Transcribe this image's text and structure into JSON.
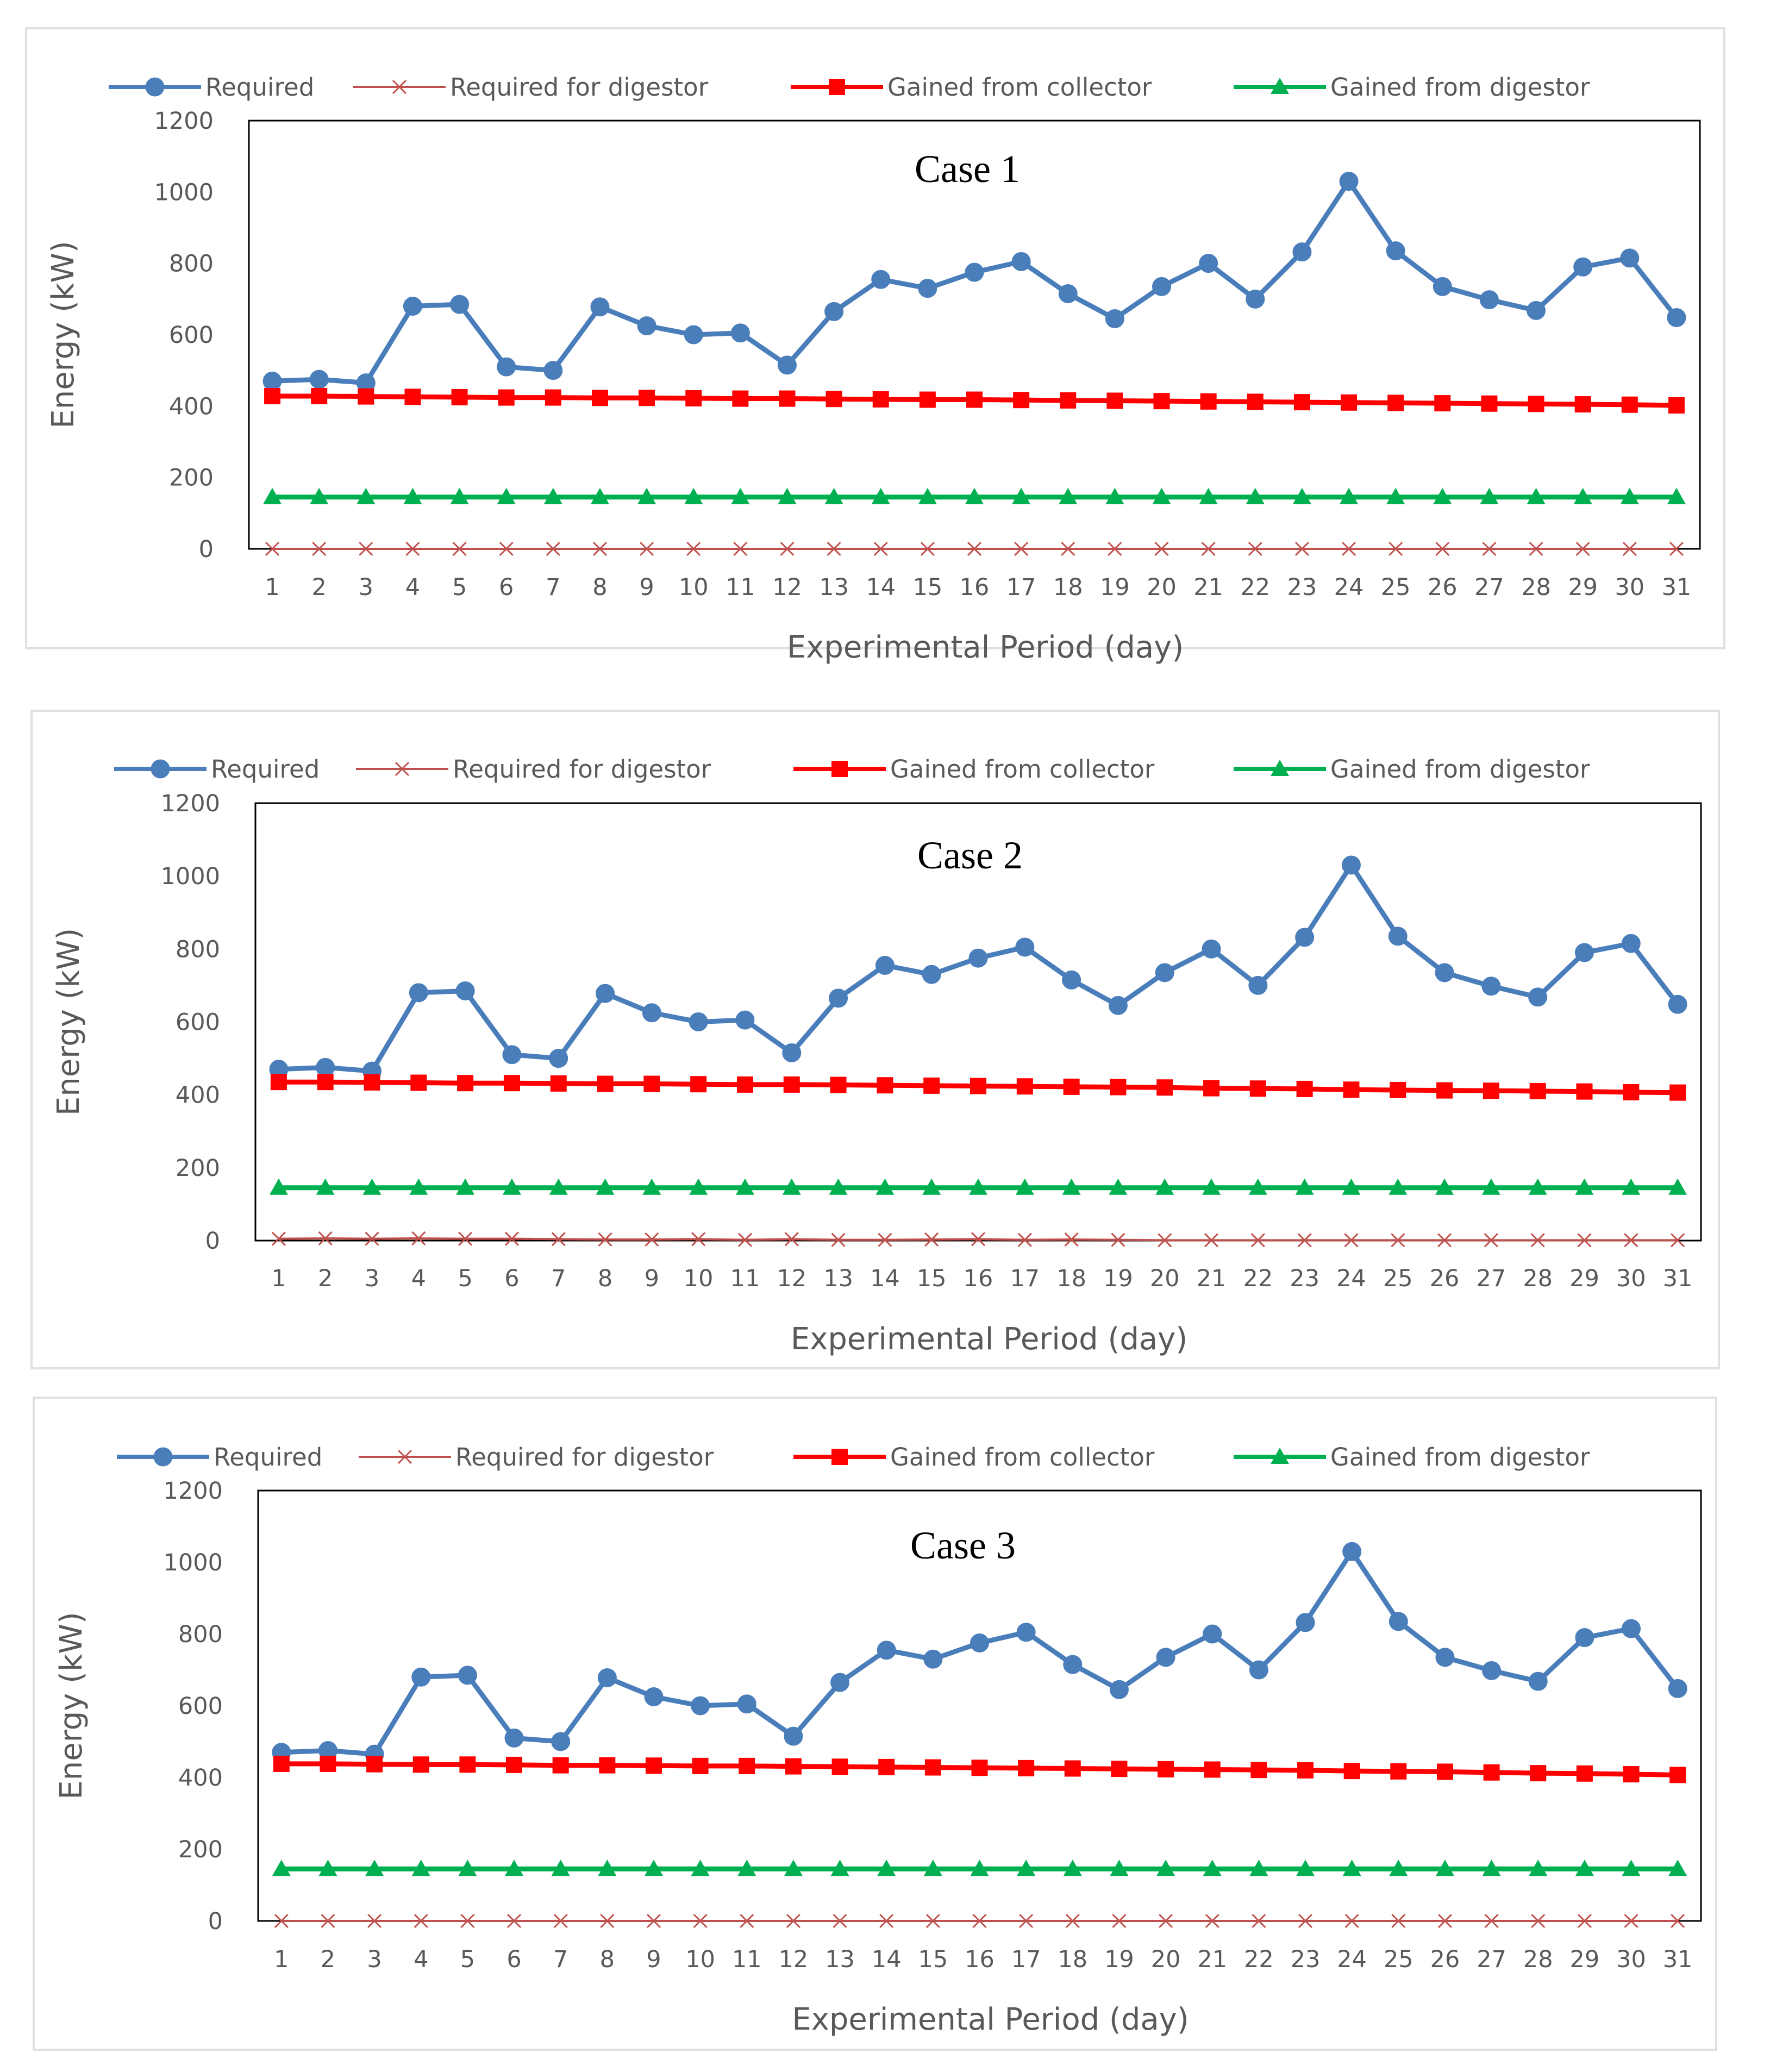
{
  "colors": {
    "required": "#4a7ebb",
    "required_for_digestor": "#c0504d",
    "gained_from_collector": "#ff0000",
    "gained_from_digestor": "#00b050",
    "frame": "#e0e0e0",
    "axis": "#000000"
  },
  "chart_data": [
    {
      "type": "line",
      "title": "Case 1",
      "xlabel": "Experimental Period (day)",
      "ylabel": "Energy (kW)",
      "ylim": [
        0,
        1200
      ],
      "yticks": [
        "0",
        "200",
        "400",
        "600",
        "800",
        "1000",
        "1200"
      ],
      "categories": [
        "1",
        "2",
        "3",
        "4",
        "5",
        "6",
        "7",
        "8",
        "9",
        "10",
        "11",
        "12",
        "13",
        "14",
        "15",
        "16",
        "17",
        "18",
        "19",
        "20",
        "21",
        "22",
        "23",
        "24",
        "25",
        "26",
        "27",
        "28",
        "29",
        "30",
        "31"
      ],
      "legend_position": "top",
      "series": [
        {
          "name": "Required",
          "marker": "circle",
          "color_key": "required",
          "values": [
            470,
            475,
            465,
            680,
            685,
            510,
            500,
            678,
            625,
            600,
            605,
            515,
            665,
            755,
            730,
            775,
            805,
            715,
            645,
            735,
            800,
            700,
            832,
            1030,
            835,
            735,
            698,
            668,
            790,
            815,
            648
          ]
        },
        {
          "name": "Required for digestor",
          "marker": "x",
          "color_key": "required_for_digestor",
          "values": [
            0,
            0,
            0,
            0,
            0,
            0,
            0,
            0,
            0,
            0,
            0,
            0,
            0,
            0,
            0,
            0,
            0,
            0,
            0,
            0,
            0,
            0,
            0,
            0,
            0,
            0,
            0,
            0,
            0,
            0,
            0
          ]
        },
        {
          "name": "Gained from collector",
          "marker": "square",
          "color_key": "gained_from_collector",
          "values": [
            428,
            428,
            427,
            426,
            425,
            424,
            424,
            423,
            423,
            422,
            421,
            421,
            420,
            419,
            418,
            418,
            417,
            416,
            415,
            414,
            413,
            412,
            411,
            410,
            409,
            408,
            407,
            406,
            405,
            404,
            402
          ]
        },
        {
          "name": "Gained from digestor",
          "marker": "triangle",
          "color_key": "gained_from_digestor",
          "values": [
            145,
            145,
            145,
            145,
            145,
            145,
            145,
            145,
            145,
            145,
            145,
            145,
            145,
            145,
            145,
            145,
            145,
            145,
            145,
            145,
            145,
            145,
            145,
            145,
            145,
            145,
            145,
            145,
            145,
            145,
            145
          ]
        }
      ]
    },
    {
      "type": "line",
      "title": "Case 2",
      "xlabel": "Experimental Period (day)",
      "ylabel": "Energy (kW)",
      "ylim": [
        0,
        1200
      ],
      "yticks": [
        "0",
        "200",
        "400",
        "600",
        "800",
        "1000",
        "1200"
      ],
      "categories": [
        "1",
        "2",
        "3",
        "4",
        "5",
        "6",
        "7",
        "8",
        "9",
        "10",
        "11",
        "12",
        "13",
        "14",
        "15",
        "16",
        "17",
        "18",
        "19",
        "20",
        "21",
        "22",
        "23",
        "24",
        "25",
        "26",
        "27",
        "28",
        "29",
        "30",
        "31"
      ],
      "legend_position": "top",
      "series": [
        {
          "name": "Required",
          "marker": "circle",
          "color_key": "required",
          "values": [
            470,
            475,
            465,
            680,
            685,
            510,
            500,
            678,
            625,
            600,
            605,
            515,
            665,
            755,
            730,
            775,
            805,
            715,
            645,
            735,
            800,
            700,
            832,
            1030,
            835,
            735,
            698,
            668,
            790,
            815,
            648
          ]
        },
        {
          "name": "Required for digestor",
          "marker": "x",
          "color_key": "required_for_digestor",
          "values": [
            5,
            6,
            5,
            6,
            5,
            5,
            4,
            3,
            3,
            4,
            2,
            4,
            2,
            2,
            3,
            4,
            2,
            3,
            2,
            1,
            1,
            1,
            1,
            1,
            1,
            1,
            1,
            1,
            1,
            1,
            1
          ]
        },
        {
          "name": "Gained from collector",
          "marker": "square",
          "color_key": "gained_from_collector",
          "values": [
            435,
            435,
            434,
            433,
            432,
            432,
            431,
            430,
            430,
            429,
            428,
            428,
            427,
            426,
            425,
            424,
            423,
            422,
            421,
            420,
            418,
            417,
            416,
            414,
            413,
            412,
            411,
            410,
            409,
            407,
            406
          ]
        },
        {
          "name": "Gained from digestor",
          "marker": "triangle",
          "color_key": "gained_from_digestor",
          "values": [
            145,
            145,
            145,
            145,
            145,
            145,
            145,
            145,
            145,
            145,
            145,
            145,
            145,
            145,
            145,
            145,
            145,
            145,
            145,
            145,
            145,
            145,
            145,
            145,
            145,
            145,
            145,
            145,
            145,
            145,
            145
          ]
        }
      ]
    },
    {
      "type": "line",
      "title": "Case 3",
      "xlabel": "Experimental Period (day)",
      "ylabel": "Energy (kW)",
      "ylim": [
        0,
        1200
      ],
      "yticks": [
        "0",
        "200",
        "400",
        "600",
        "800",
        "1000",
        "1200"
      ],
      "categories": [
        "1",
        "2",
        "3",
        "4",
        "5",
        "6",
        "7",
        "8",
        "9",
        "10",
        "11",
        "12",
        "13",
        "14",
        "15",
        "16",
        "17",
        "18",
        "19",
        "20",
        "21",
        "22",
        "23",
        "24",
        "25",
        "26",
        "27",
        "28",
        "29",
        "30",
        "31"
      ],
      "legend_position": "top",
      "series": [
        {
          "name": "Required",
          "marker": "circle",
          "color_key": "required",
          "values": [
            470,
            475,
            465,
            680,
            685,
            510,
            500,
            678,
            625,
            600,
            605,
            515,
            665,
            755,
            730,
            775,
            805,
            715,
            645,
            735,
            800,
            700,
            832,
            1030,
            835,
            735,
            698,
            668,
            790,
            815,
            648
          ]
        },
        {
          "name": "Required for digestor",
          "marker": "x",
          "color_key": "required_for_digestor",
          "values": [
            0,
            0,
            0,
            0,
            0,
            0,
            0,
            0,
            0,
            0,
            0,
            0,
            0,
            0,
            0,
            0,
            0,
            0,
            0,
            0,
            0,
            0,
            0,
            0,
            0,
            0,
            0,
            0,
            0,
            0,
            0
          ]
        },
        {
          "name": "Gained from collector",
          "marker": "square",
          "color_key": "gained_from_collector",
          "values": [
            438,
            438,
            437,
            436,
            436,
            435,
            434,
            434,
            433,
            432,
            432,
            431,
            430,
            429,
            428,
            427,
            426,
            425,
            424,
            423,
            422,
            421,
            420,
            418,
            417,
            416,
            414,
            412,
            411,
            409,
            407
          ]
        },
        {
          "name": "Gained from digestor",
          "marker": "triangle",
          "color_key": "gained_from_digestor",
          "values": [
            145,
            145,
            145,
            145,
            145,
            145,
            145,
            145,
            145,
            145,
            145,
            145,
            145,
            145,
            145,
            145,
            145,
            145,
            145,
            145,
            145,
            145,
            145,
            145,
            145,
            145,
            145,
            145,
            145,
            145,
            145
          ]
        }
      ]
    }
  ]
}
